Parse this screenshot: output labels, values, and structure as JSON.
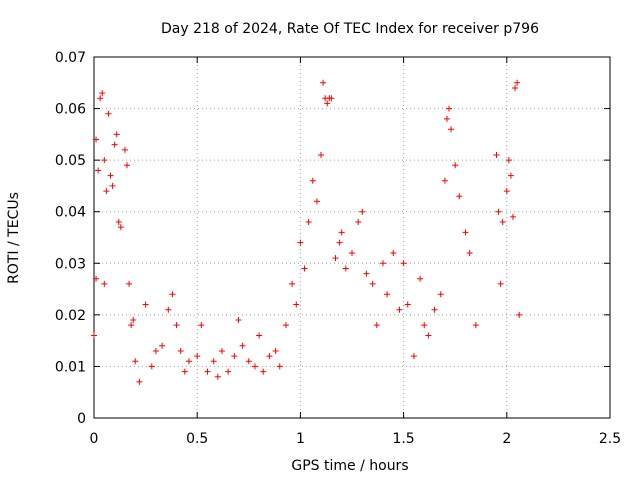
{
  "chart_data": {
    "type": "scatter",
    "title": "Day 218 of 2024, Rate Of TEC Index for receiver p796",
    "xlabel": "GPS time / hours",
    "ylabel": "ROTI / TECUs",
    "xlim": [
      0,
      2.5
    ],
    "ylim": [
      0,
      0.07
    ],
    "xticks": [
      0,
      0.5,
      1,
      1.5,
      2,
      2.5
    ],
    "xtick_labels": [
      "0",
      "0.5",
      "1",
      "1.5",
      "2",
      "2.5"
    ],
    "yticks": [
      0,
      0.01,
      0.02,
      0.03,
      0.04,
      0.05,
      0.06,
      0.07
    ],
    "ytick_labels": [
      "0",
      "0.01",
      "0.02",
      "0.03",
      "0.04",
      "0.05",
      "0.06",
      "0.07"
    ],
    "grid": true,
    "marker": "+",
    "color": "#ff0000",
    "series": [
      {
        "name": "ROTI",
        "x": [
          0.0,
          0.01,
          0.01,
          0.02,
          0.03,
          0.04,
          0.05,
          0.05,
          0.06,
          0.07,
          0.08,
          0.09,
          0.1,
          0.11,
          0.12,
          0.13,
          0.15,
          0.16,
          0.17,
          0.18,
          0.19,
          0.2,
          0.22,
          0.25,
          0.28,
          0.3,
          0.33,
          0.36,
          0.38,
          0.4,
          0.42,
          0.44,
          0.46,
          0.5,
          0.52,
          0.55,
          0.58,
          0.6,
          0.62,
          0.65,
          0.68,
          0.7,
          0.72,
          0.75,
          0.78,
          0.8,
          0.82,
          0.85,
          0.88,
          0.9,
          0.93,
          0.96,
          0.98,
          1.0,
          1.02,
          1.04,
          1.06,
          1.08,
          1.1,
          1.11,
          1.12,
          1.13,
          1.14,
          1.15,
          1.17,
          1.19,
          1.2,
          1.22,
          1.25,
          1.28,
          1.3,
          1.32,
          1.35,
          1.37,
          1.4,
          1.42,
          1.45,
          1.48,
          1.5,
          1.52,
          1.55,
          1.58,
          1.6,
          1.62,
          1.65,
          1.68,
          1.7,
          1.71,
          1.72,
          1.73,
          1.75,
          1.77,
          1.8,
          1.82,
          1.85,
          1.95,
          1.96,
          1.97,
          1.98,
          2.0,
          2.01,
          2.02,
          2.03,
          2.04,
          2.05,
          2.06
        ],
        "y": [
          0.016,
          0.054,
          0.027,
          0.048,
          0.062,
          0.063,
          0.05,
          0.026,
          0.044,
          0.059,
          0.047,
          0.045,
          0.053,
          0.055,
          0.038,
          0.037,
          0.052,
          0.049,
          0.026,
          0.018,
          0.019,
          0.011,
          0.007,
          0.022,
          0.01,
          0.013,
          0.014,
          0.021,
          0.024,
          0.018,
          0.013,
          0.009,
          0.011,
          0.012,
          0.018,
          0.009,
          0.011,
          0.008,
          0.013,
          0.009,
          0.012,
          0.019,
          0.014,
          0.011,
          0.01,
          0.016,
          0.009,
          0.012,
          0.013,
          0.01,
          0.018,
          0.026,
          0.022,
          0.034,
          0.029,
          0.038,
          0.046,
          0.042,
          0.051,
          0.065,
          0.062,
          0.061,
          0.062,
          0.062,
          0.031,
          0.034,
          0.036,
          0.029,
          0.032,
          0.038,
          0.04,
          0.028,
          0.026,
          0.018,
          0.03,
          0.024,
          0.032,
          0.021,
          0.03,
          0.022,
          0.012,
          0.027,
          0.018,
          0.016,
          0.021,
          0.024,
          0.046,
          0.058,
          0.06,
          0.056,
          0.049,
          0.043,
          0.036,
          0.032,
          0.018,
          0.051,
          0.04,
          0.026,
          0.038,
          0.044,
          0.05,
          0.047,
          0.039,
          0.064,
          0.065,
          0.02
        ]
      }
    ]
  }
}
